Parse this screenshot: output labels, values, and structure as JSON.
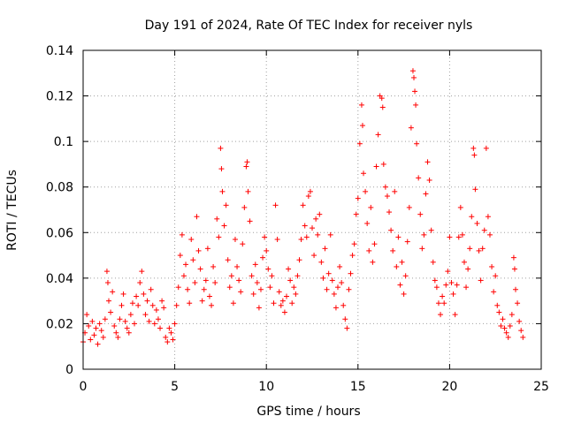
{
  "chart_data": {
    "type": "scatter",
    "title": "Day 191 of 2024, Rate Of TEC Index for receiver nyls",
    "xlabel": "GPS time / hours",
    "ylabel": "ROTI / TECUs",
    "xlim": [
      0,
      25
    ],
    "ylim": [
      0,
      0.14
    ],
    "x_ticks": [
      0,
      5,
      10,
      15,
      20,
      25
    ],
    "y_ticks": [
      0,
      0.02,
      0.04,
      0.06,
      0.08,
      0.1,
      0.12,
      0.14
    ],
    "x_tick_labels": [
      "0",
      "5",
      "10",
      "15",
      "20",
      "25"
    ],
    "y_tick_labels": [
      "0",
      "0.02",
      "0.04",
      "0.06",
      "0.08",
      "0.1",
      "0.12",
      "0.14"
    ],
    "grid": true,
    "marker": "+",
    "color": "#ff0000",
    "series": [
      {
        "name": "ROTI",
        "points": [
          [
            0.0,
            0.012
          ],
          [
            0.1,
            0.016
          ],
          [
            0.2,
            0.024
          ],
          [
            0.3,
            0.019
          ],
          [
            0.4,
            0.013
          ],
          [
            0.5,
            0.021
          ],
          [
            0.6,
            0.015
          ],
          [
            0.7,
            0.018
          ],
          [
            0.8,
            0.011
          ],
          [
            0.9,
            0.02
          ],
          [
            1.0,
            0.017
          ],
          [
            1.1,
            0.014
          ],
          [
            1.2,
            0.022
          ],
          [
            1.3,
            0.043
          ],
          [
            1.35,
            0.038
          ],
          [
            1.4,
            0.03
          ],
          [
            1.5,
            0.025
          ],
          [
            1.6,
            0.034
          ],
          [
            1.7,
            0.019
          ],
          [
            1.8,
            0.016
          ],
          [
            1.9,
            0.014
          ],
          [
            2.0,
            0.022
          ],
          [
            2.1,
            0.028
          ],
          [
            2.2,
            0.033
          ],
          [
            2.3,
            0.021
          ],
          [
            2.4,
            0.018
          ],
          [
            2.5,
            0.016
          ],
          [
            2.6,
            0.024
          ],
          [
            2.7,
            0.029
          ],
          [
            2.8,
            0.02
          ],
          [
            2.9,
            0.032
          ],
          [
            3.0,
            0.028
          ],
          [
            3.1,
            0.038
          ],
          [
            3.2,
            0.043
          ],
          [
            3.3,
            0.033
          ],
          [
            3.4,
            0.024
          ],
          [
            3.5,
            0.03
          ],
          [
            3.6,
            0.021
          ],
          [
            3.7,
            0.035
          ],
          [
            3.8,
            0.028
          ],
          [
            3.9,
            0.02
          ],
          [
            4.0,
            0.026
          ],
          [
            4.1,
            0.022
          ],
          [
            4.2,
            0.018
          ],
          [
            4.3,
            0.03
          ],
          [
            4.4,
            0.027
          ],
          [
            4.5,
            0.014
          ],
          [
            4.6,
            0.012
          ],
          [
            4.7,
            0.018
          ],
          [
            4.8,
            0.016
          ],
          [
            4.9,
            0.013
          ],
          [
            5.0,
            0.02
          ],
          [
            5.1,
            0.028
          ],
          [
            5.2,
            0.036
          ],
          [
            5.3,
            0.05
          ],
          [
            5.4,
            0.059
          ],
          [
            5.5,
            0.041
          ],
          [
            5.6,
            0.046
          ],
          [
            5.7,
            0.035
          ],
          [
            5.8,
            0.029
          ],
          [
            5.9,
            0.057
          ],
          [
            6.0,
            0.048
          ],
          [
            6.1,
            0.038
          ],
          [
            6.2,
            0.067
          ],
          [
            6.3,
            0.052
          ],
          [
            6.4,
            0.044
          ],
          [
            6.5,
            0.03
          ],
          [
            6.6,
            0.035
          ],
          [
            6.7,
            0.039
          ],
          [
            6.8,
            0.053
          ],
          [
            6.9,
            0.032
          ],
          [
            7.0,
            0.028
          ],
          [
            7.1,
            0.045
          ],
          [
            7.2,
            0.038
          ],
          [
            7.3,
            0.066
          ],
          [
            7.4,
            0.058
          ],
          [
            7.5,
            0.097
          ],
          [
            7.55,
            0.088
          ],
          [
            7.6,
            0.078
          ],
          [
            7.7,
            0.063
          ],
          [
            7.8,
            0.072
          ],
          [
            7.9,
            0.048
          ],
          [
            8.0,
            0.036
          ],
          [
            8.1,
            0.041
          ],
          [
            8.2,
            0.029
          ],
          [
            8.3,
            0.057
          ],
          [
            8.4,
            0.045
          ],
          [
            8.5,
            0.039
          ],
          [
            8.6,
            0.034
          ],
          [
            8.7,
            0.055
          ],
          [
            8.8,
            0.071
          ],
          [
            8.9,
            0.089
          ],
          [
            8.95,
            0.091
          ],
          [
            9.0,
            0.078
          ],
          [
            9.1,
            0.065
          ],
          [
            9.2,
            0.041
          ],
          [
            9.3,
            0.033
          ],
          [
            9.4,
            0.046
          ],
          [
            9.5,
            0.038
          ],
          [
            9.6,
            0.027
          ],
          [
            9.7,
            0.035
          ],
          [
            9.8,
            0.049
          ],
          [
            9.9,
            0.058
          ],
          [
            10.0,
            0.052
          ],
          [
            10.1,
            0.044
          ],
          [
            10.2,
            0.036
          ],
          [
            10.3,
            0.041
          ],
          [
            10.4,
            0.029
          ],
          [
            10.5,
            0.072
          ],
          [
            10.6,
            0.057
          ],
          [
            10.7,
            0.034
          ],
          [
            10.8,
            0.028
          ],
          [
            10.9,
            0.03
          ],
          [
            11.0,
            0.025
          ],
          [
            11.1,
            0.032
          ],
          [
            11.2,
            0.044
          ],
          [
            11.3,
            0.039
          ],
          [
            11.4,
            0.029
          ],
          [
            11.5,
            0.036
          ],
          [
            11.6,
            0.033
          ],
          [
            11.7,
            0.041
          ],
          [
            11.8,
            0.048
          ],
          [
            11.9,
            0.057
          ],
          [
            12.0,
            0.072
          ],
          [
            12.1,
            0.063
          ],
          [
            12.2,
            0.058
          ],
          [
            12.3,
            0.076
          ],
          [
            12.4,
            0.078
          ],
          [
            12.5,
            0.062
          ],
          [
            12.6,
            0.05
          ],
          [
            12.7,
            0.066
          ],
          [
            12.8,
            0.059
          ],
          [
            12.9,
            0.068
          ],
          [
            13.0,
            0.047
          ],
          [
            13.1,
            0.04
          ],
          [
            13.2,
            0.053
          ],
          [
            13.3,
            0.035
          ],
          [
            13.4,
            0.042
          ],
          [
            13.5,
            0.059
          ],
          [
            13.6,
            0.039
          ],
          [
            13.7,
            0.033
          ],
          [
            13.8,
            0.027
          ],
          [
            13.9,
            0.036
          ],
          [
            14.0,
            0.045
          ],
          [
            14.1,
            0.038
          ],
          [
            14.2,
            0.028
          ],
          [
            14.3,
            0.022
          ],
          [
            14.4,
            0.018
          ],
          [
            14.5,
            0.035
          ],
          [
            14.6,
            0.042
          ],
          [
            14.7,
            0.05
          ],
          [
            14.8,
            0.055
          ],
          [
            14.9,
            0.068
          ],
          [
            15.0,
            0.075
          ],
          [
            15.1,
            0.099
          ],
          [
            15.2,
            0.116
          ],
          [
            15.25,
            0.107
          ],
          [
            15.3,
            0.086
          ],
          [
            15.4,
            0.078
          ],
          [
            15.5,
            0.064
          ],
          [
            15.6,
            0.052
          ],
          [
            15.7,
            0.071
          ],
          [
            15.8,
            0.047
          ],
          [
            15.9,
            0.055
          ],
          [
            16.0,
            0.089
          ],
          [
            16.1,
            0.103
          ],
          [
            16.2,
            0.12
          ],
          [
            16.3,
            0.119
          ],
          [
            16.35,
            0.115
          ],
          [
            16.4,
            0.09
          ],
          [
            16.5,
            0.08
          ],
          [
            16.6,
            0.076
          ],
          [
            16.7,
            0.069
          ],
          [
            16.8,
            0.061
          ],
          [
            16.9,
            0.052
          ],
          [
            17.0,
            0.078
          ],
          [
            17.1,
            0.045
          ],
          [
            17.2,
            0.058
          ],
          [
            17.3,
            0.037
          ],
          [
            17.4,
            0.047
          ],
          [
            17.5,
            0.033
          ],
          [
            17.6,
            0.041
          ],
          [
            17.7,
            0.056
          ],
          [
            17.8,
            0.071
          ],
          [
            17.9,
            0.106
          ],
          [
            18.0,
            0.131
          ],
          [
            18.05,
            0.128
          ],
          [
            18.1,
            0.122
          ],
          [
            18.15,
            0.116
          ],
          [
            18.2,
            0.099
          ],
          [
            18.3,
            0.084
          ],
          [
            18.4,
            0.068
          ],
          [
            18.5,
            0.053
          ],
          [
            18.6,
            0.059
          ],
          [
            18.7,
            0.077
          ],
          [
            18.8,
            0.091
          ],
          [
            18.9,
            0.083
          ],
          [
            19.0,
            0.061
          ],
          [
            19.1,
            0.047
          ],
          [
            19.2,
            0.039
          ],
          [
            19.3,
            0.036
          ],
          [
            19.4,
            0.029
          ],
          [
            19.5,
            0.024
          ],
          [
            19.6,
            0.032
          ],
          [
            19.7,
            0.029
          ],
          [
            19.8,
            0.037
          ],
          [
            19.9,
            0.043
          ],
          [
            20.0,
            0.058
          ],
          [
            20.1,
            0.038
          ],
          [
            20.2,
            0.033
          ],
          [
            20.3,
            0.024
          ],
          [
            20.4,
            0.037
          ],
          [
            20.5,
            0.058
          ],
          [
            20.6,
            0.071
          ],
          [
            20.7,
            0.059
          ],
          [
            20.8,
            0.047
          ],
          [
            20.9,
            0.036
          ],
          [
            21.0,
            0.044
          ],
          [
            21.1,
            0.053
          ],
          [
            21.2,
            0.067
          ],
          [
            21.3,
            0.097
          ],
          [
            21.35,
            0.094
          ],
          [
            21.4,
            0.079
          ],
          [
            21.5,
            0.064
          ],
          [
            21.6,
            0.052
          ],
          [
            21.7,
            0.039
          ],
          [
            21.8,
            0.053
          ],
          [
            21.9,
            0.061
          ],
          [
            22.0,
            0.097
          ],
          [
            22.1,
            0.067
          ],
          [
            22.2,
            0.059
          ],
          [
            22.3,
            0.045
          ],
          [
            22.4,
            0.034
          ],
          [
            22.5,
            0.041
          ],
          [
            22.6,
            0.028
          ],
          [
            22.7,
            0.025
          ],
          [
            22.8,
            0.019
          ],
          [
            22.9,
            0.022
          ],
          [
            23.0,
            0.018
          ],
          [
            23.1,
            0.016
          ],
          [
            23.2,
            0.014
          ],
          [
            23.3,
            0.019
          ],
          [
            23.4,
            0.024
          ],
          [
            23.5,
            0.049
          ],
          [
            23.55,
            0.044
          ],
          [
            23.6,
            0.035
          ],
          [
            23.7,
            0.029
          ],
          [
            23.8,
            0.021
          ],
          [
            23.9,
            0.017
          ],
          [
            24.0,
            0.014
          ]
        ]
      }
    ]
  }
}
